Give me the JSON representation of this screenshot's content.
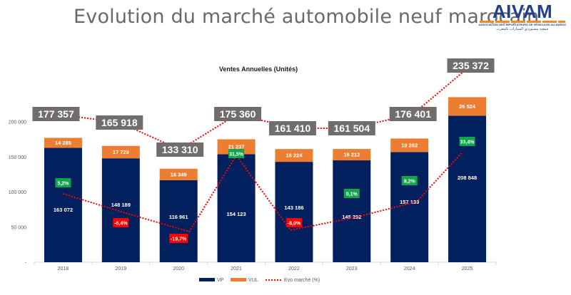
{
  "header": {
    "title": "Evolution du marché automobile neuf marocain"
  },
  "logo": {
    "brand": "AIVAM",
    "subtitle": "ASSOCIATION DES IMPORTATEURS DE VÉHICULES AU MAROC",
    "arabic": "جمعية مستوردي السيارات بالمغرب"
  },
  "colors": {
    "vp": "#02205e",
    "vul": "#ed7d31",
    "evo_line": "#ff0000",
    "total_box": "#716d6d",
    "evo_positive": "#11a54b",
    "evo_negative": "#ff0000",
    "axis": "#d9d9d9"
  },
  "chart_data": {
    "type": "bar",
    "stacked": true,
    "title": "Ventes Annuelles (Unités)",
    "xlabel": "",
    "ylabel": "",
    "categories": [
      "2018",
      "2019",
      "2020",
      "2021",
      "2022",
      "2023",
      "2024",
      "2025"
    ],
    "series": [
      {
        "name": "VP",
        "values": [
          163072,
          148189,
          116961,
          154123,
          143186,
          145292,
          157139,
          208848
        ],
        "labels": [
          "163 072",
          "148 189",
          "116 961",
          "154 123",
          "143 186",
          "145 292",
          "157 139",
          "208 848"
        ]
      },
      {
        "name": "VUL",
        "values": [
          14285,
          17729,
          16349,
          21237,
          18224,
          16212,
          19262,
          26524
        ],
        "labels": [
          "14 285",
          "17 729",
          "16 349",
          "21 237",
          "18 224",
          "16 212",
          "19 262",
          "26 524"
        ]
      }
    ],
    "totals": {
      "name": "Total",
      "values": [
        177357,
        165918,
        133310,
        175360,
        161410,
        161504,
        176401,
        235372
      ],
      "labels": [
        "177 357",
        "165 918",
        "133 310",
        "175 360",
        "161 410",
        "161 504",
        "176 401",
        "235 372"
      ]
    },
    "evolution": {
      "name": "Evo marché (%)",
      "values": [
        5.2,
        -6.4,
        -19.7,
        31.5,
        -8.0,
        0.1,
        9.2,
        33.4
      ],
      "labels": [
        "5,2%",
        "-6,4%",
        "-19,7%",
        "31,5%",
        "-8,0%",
        "0,1%",
        "9,2%",
        "33,4%"
      ]
    },
    "ylim": [
      0,
      250000
    ],
    "yticks": [
      0,
      50000,
      100000,
      150000,
      200000
    ],
    "ytick_labels": [
      "-",
      "50 000",
      "100 000",
      "150 000",
      "200 000"
    ],
    "grid": false,
    "legend": {
      "position": "bottom",
      "entries": [
        "VP",
        "VUL",
        "Evo marché (%)"
      ]
    }
  }
}
